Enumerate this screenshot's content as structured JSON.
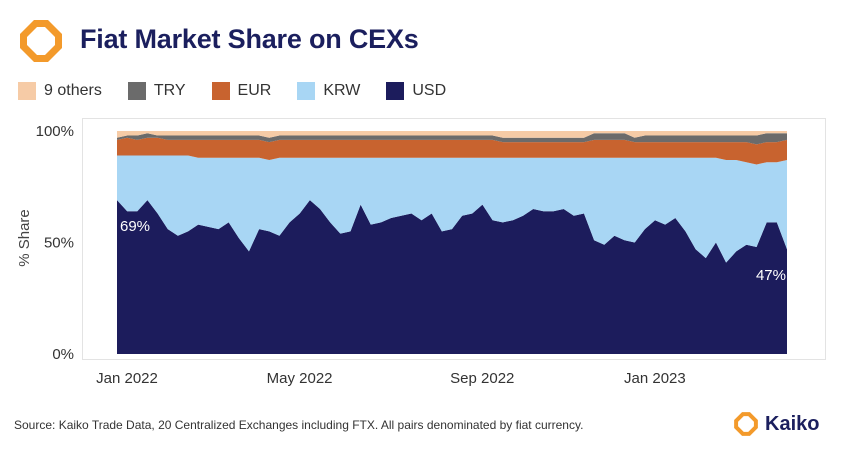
{
  "header": {
    "title": "Fiat Market Share on CEXs"
  },
  "legend": [
    {
      "label": "9 others",
      "color": "#f6cba6"
    },
    {
      "label": "TRY",
      "color": "#6b6b6b"
    },
    {
      "label": "EUR",
      "color": "#c8632f"
    },
    {
      "label": "KRW",
      "color": "#a8d6f4"
    },
    {
      "label": "USD",
      "color": "#1c1c5c"
    }
  ],
  "footer": {
    "source": "Source: Kaiko Trade Data, 20 Centralized Exchanges including FTX. All pairs denominated by fiat currency.",
    "brand": "Kaiko"
  },
  "colors": {
    "brand_orange": "#f39a2b",
    "brand_navy": "#1b1f5e"
  },
  "chart_data": {
    "type": "area",
    "stacked": true,
    "title": "Fiat Market Share on CEXs",
    "ylabel": "% Share",
    "xlabel": "",
    "ylim": [
      0,
      100
    ],
    "yticks": [
      {
        "value": 0,
        "label": "0%"
      },
      {
        "value": 50,
        "label": "50%"
      },
      {
        "value": 100,
        "label": "100%"
      }
    ],
    "x_start": "2022-01-01",
    "x_interval": "week",
    "xticks": [
      {
        "index": 0,
        "label": "Jan 2022"
      },
      {
        "index": 17,
        "label": "May 2022"
      },
      {
        "index": 35,
        "label": "Sep 2022"
      },
      {
        "index": 52,
        "label": "Jan 2023"
      }
    ],
    "series": [
      {
        "name": "USD",
        "color": "#1c1c5c",
        "values": [
          69,
          64,
          64,
          69,
          63,
          56,
          53,
          55,
          58,
          57,
          56,
          59,
          52,
          46,
          56,
          55,
          53,
          59,
          63,
          69,
          65,
          59,
          54,
          55,
          67,
          58,
          59,
          61,
          62,
          63,
          60,
          63,
          55,
          56,
          62,
          63,
          67,
          60,
          59,
          60,
          62,
          65,
          64,
          64,
          65,
          62,
          63,
          51,
          49,
          53,
          51,
          50,
          56,
          60,
          58,
          61,
          55,
          47,
          43,
          50,
          41,
          46,
          49,
          48,
          59,
          59,
          47
        ]
      },
      {
        "name": "KRW",
        "color": "#a8d6f4",
        "values": [
          20,
          25,
          25,
          20,
          26,
          33,
          36,
          34,
          30,
          31,
          32,
          29,
          36,
          42,
          32,
          32,
          35,
          29,
          25,
          19,
          23,
          29,
          34,
          33,
          21,
          30,
          29,
          27,
          26,
          25,
          28,
          25,
          33,
          32,
          26,
          25,
          21,
          28,
          29,
          28,
          26,
          23,
          24,
          24,
          23,
          26,
          25,
          37,
          39,
          35,
          37,
          38,
          32,
          28,
          30,
          27,
          33,
          41,
          45,
          38,
          46,
          41,
          37,
          37,
          27,
          27,
          40
        ]
      },
      {
        "name": "EUR",
        "color": "#c8632f",
        "values": [
          7,
          8,
          7,
          8,
          8,
          7,
          7,
          7,
          8,
          8,
          8,
          8,
          8,
          8,
          8,
          8,
          8,
          8,
          8,
          8,
          8,
          8,
          8,
          8,
          8,
          8,
          8,
          8,
          8,
          8,
          8,
          8,
          8,
          8,
          8,
          8,
          8,
          8,
          7,
          7,
          7,
          7,
          7,
          7,
          7,
          7,
          7,
          8,
          8,
          8,
          8,
          7,
          7,
          7,
          7,
          7,
          7,
          7,
          7,
          7,
          8,
          8,
          9,
          9,
          9,
          9,
          9
        ]
      },
      {
        "name": "TRY",
        "color": "#6b6b6b",
        "values": [
          1,
          1,
          2,
          2,
          1,
          2,
          2,
          2,
          2,
          2,
          2,
          2,
          2,
          2,
          2,
          2,
          2,
          2,
          2,
          2,
          2,
          2,
          2,
          2,
          2,
          2,
          2,
          2,
          2,
          2,
          2,
          2,
          2,
          2,
          2,
          2,
          2,
          2,
          2,
          2,
          2,
          2,
          2,
          2,
          2,
          2,
          2,
          3,
          3,
          3,
          3,
          2,
          3,
          3,
          3,
          3,
          3,
          3,
          3,
          3,
          3,
          3,
          3,
          4,
          4,
          4,
          3
        ]
      },
      {
        "name": "9 others",
        "color": "#f6cba6",
        "values": [
          3,
          2,
          2,
          1,
          2,
          2,
          2,
          2,
          2,
          2,
          2,
          2,
          2,
          2,
          2,
          3,
          2,
          2,
          2,
          2,
          2,
          2,
          2,
          2,
          2,
          2,
          2,
          2,
          2,
          2,
          2,
          2,
          2,
          2,
          2,
          2,
          2,
          2,
          3,
          3,
          3,
          3,
          3,
          3,
          3,
          3,
          3,
          1,
          1,
          1,
          1,
          3,
          2,
          2,
          2,
          2,
          2,
          2,
          2,
          2,
          2,
          2,
          2,
          2,
          1,
          1,
          1
        ]
      }
    ],
    "annotations": [
      {
        "series": "USD",
        "index": 0,
        "label": "69%"
      },
      {
        "series": "USD",
        "index": 66,
        "label": "47%"
      }
    ],
    "grid": false,
    "legend_position": "top"
  }
}
